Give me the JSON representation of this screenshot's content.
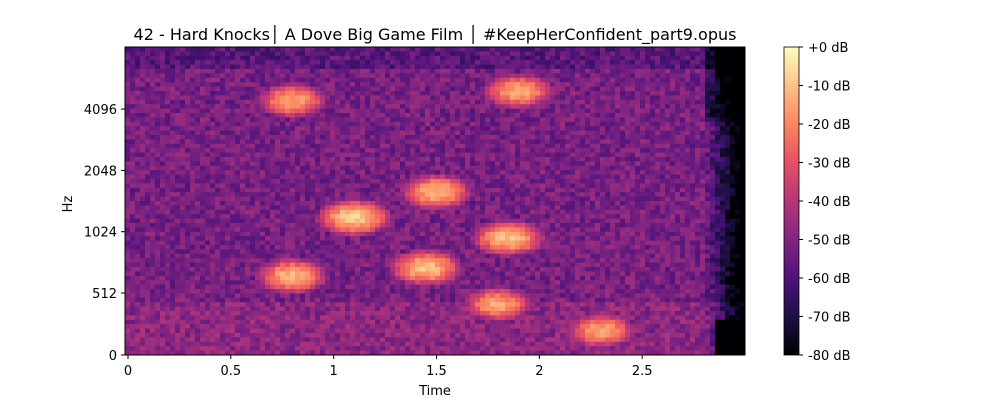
{
  "chart_data": {
    "type": "heatmap",
    "title": "42 - Hard Knocks│ A Dove Big Game Film │ #KeepHerConfident_part9.opus",
    "xlabel": "Time",
    "ylabel": "Hz",
    "x_ticks": [
      "0",
      "0.5",
      "1",
      "1.5",
      "2",
      "2.5"
    ],
    "x_tick_values": [
      0,
      0.5,
      1,
      1.5,
      2,
      2.5
    ],
    "y_ticks": [
      "0",
      "512",
      "1024",
      "2048",
      "4096"
    ],
    "y_tick_values": [
      0,
      512,
      1024,
      2048,
      4096
    ],
    "xlim": [
      0,
      3.0
    ],
    "y_scale": "log",
    "colorbar": {
      "label_ticks": [
        "+0 dB",
        "-10 dB",
        "-20 dB",
        "-30 dB",
        "-40 dB",
        "-50 dB",
        "-60 dB",
        "-70 dB",
        "-80 dB"
      ],
      "range_db": [
        -80,
        0
      ],
      "colormap": "magma",
      "colors": [
        "#000004",
        "#1c1044",
        "#4f127b",
        "#812581",
        "#b5367a",
        "#e55064",
        "#fb8761",
        "#fec287",
        "#fcfdbf"
      ]
    },
    "bright_regions": [
      {
        "time": 0.8,
        "freq_hz": 4500,
        "level_db": -15
      },
      {
        "time": 0.8,
        "freq_hz": 620,
        "level_db": -12
      },
      {
        "time": 1.1,
        "freq_hz": 1200,
        "level_db": -8
      },
      {
        "time": 1.45,
        "freq_hz": 680,
        "level_db": -10
      },
      {
        "time": 1.5,
        "freq_hz": 1600,
        "level_db": -12
      },
      {
        "time": 1.85,
        "freq_hz": 950,
        "level_db": -10
      },
      {
        "time": 1.9,
        "freq_hz": 5000,
        "level_db": -14
      },
      {
        "time": 1.8,
        "freq_hz": 420,
        "level_db": -15
      },
      {
        "time": 2.3,
        "freq_hz": 200,
        "level_db": -15
      }
    ]
  }
}
